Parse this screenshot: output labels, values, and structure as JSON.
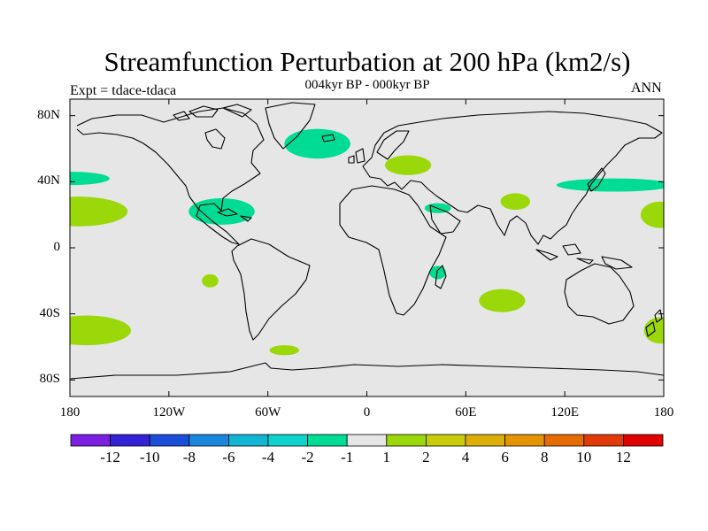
{
  "title": "Streamfunction Perturbation at 200 hPa (km2/s)",
  "subtitle": "004kyr BP - 000kyr BP",
  "experiment": "Expt = tdace-tdaca",
  "season": "ANN",
  "map": {
    "projection": "cylindrical equidistant",
    "lon_range": [
      -180,
      180
    ],
    "lat_range": [
      -90,
      90
    ],
    "ocean_color": "#e6e6e6",
    "coastline_color": "#000000",
    "lat_ticks": [
      {
        "lat": 80,
        "label": "80N"
      },
      {
        "lat": 40,
        "label": "40N"
      },
      {
        "lat": 0,
        "label": "0"
      },
      {
        "lat": -40,
        "label": "40S"
      },
      {
        "lat": -80,
        "label": "80S"
      }
    ],
    "lon_ticks": [
      {
        "lon": -180,
        "label": "180"
      },
      {
        "lon": -120,
        "label": "120W"
      },
      {
        "lon": -60,
        "label": "60W"
      },
      {
        "lon": 0,
        "label": "0"
      },
      {
        "lon": 60,
        "label": "60E"
      },
      {
        "lon": 120,
        "label": "120E"
      },
      {
        "lon": 180,
        "label": "180"
      }
    ],
    "anomaly_patches": [
      {
        "region": "North Pacific (dateline)",
        "lon": -178,
        "lat": 42,
        "rlon": 22,
        "rlat": 4,
        "sign": "negative",
        "level": "-2 to -1"
      },
      {
        "region": "Central North Pacific",
        "lon": -175,
        "lat": 22,
        "rlon": 30,
        "rlat": 9,
        "sign": "positive",
        "level": "1 to 2"
      },
      {
        "region": "Central America",
        "lon": -88,
        "lat": 22,
        "rlon": 20,
        "rlat": 8,
        "sign": "negative",
        "level": "-2 to -1"
      },
      {
        "region": "South Pacific",
        "lon": -95,
        "lat": -20,
        "rlon": 5,
        "rlat": 4,
        "sign": "positive",
        "level": "1 to 2"
      },
      {
        "region": "Southern Pacific 45S",
        "lon": -170,
        "lat": -50,
        "rlon": 27,
        "rlat": 9,
        "sign": "positive",
        "level": "1 to 2"
      },
      {
        "region": "Drake Passage",
        "lon": -50,
        "lat": -62,
        "rlon": 9,
        "rlat": 3,
        "sign": "positive",
        "level": "1 to 2"
      },
      {
        "region": "North Atlantic / Greenland",
        "lon": -30,
        "lat": 63,
        "rlon": 20,
        "rlat": 9,
        "sign": "negative",
        "level": "-2 to -1"
      },
      {
        "region": "Eastern Europe",
        "lon": 25,
        "lat": 50,
        "rlon": 14,
        "rlat": 6,
        "sign": "positive",
        "level": "1 to 2"
      },
      {
        "region": "Red Sea",
        "lon": 43,
        "lat": 24,
        "rlon": 8,
        "rlat": 3,
        "sign": "negative",
        "level": "-2 to -1"
      },
      {
        "region": "Mozambique Channel",
        "lon": 43,
        "lat": -15,
        "rlon": 5,
        "rlat": 4,
        "sign": "negative",
        "level": "-2 to -1"
      },
      {
        "region": "Central Asia",
        "lon": 90,
        "lat": 28,
        "rlon": 9,
        "rlat": 5,
        "sign": "positive",
        "level": "1 to 2"
      },
      {
        "region": "Southern Indian Ocean",
        "lon": 82,
        "lat": -32,
        "rlon": 14,
        "rlat": 7,
        "sign": "positive",
        "level": "1 to 2"
      },
      {
        "region": "Japan / NW Pacific jet",
        "lon": 150,
        "lat": 38,
        "rlon": 35,
        "rlat": 4,
        "sign": "negative",
        "level": "-2 to -1"
      },
      {
        "region": "North Pacific 20N",
        "lon": 178,
        "lat": 20,
        "rlon": 12,
        "rlat": 8,
        "sign": "positive",
        "level": "1 to 2"
      },
      {
        "region": "South Pacific dateline",
        "lon": 178,
        "lat": -50,
        "rlon": 10,
        "rlat": 8,
        "sign": "positive",
        "level": "1 to 2"
      }
    ]
  },
  "colorbar": {
    "colors": [
      "#7b1fe0",
      "#3322d6",
      "#1a4dd8",
      "#1a86dc",
      "#12b5d4",
      "#10d2cc",
      "#00dc94",
      "#e6e6e6",
      "#9ad80a",
      "#c8cc0a",
      "#dcae08",
      "#e49402",
      "#e46c02",
      "#e03a08",
      "#e00000"
    ],
    "labels": [
      "-12",
      "-10",
      "-8",
      "-6",
      "-4",
      "-2",
      "-1",
      "1",
      "2",
      "4",
      "6",
      "8",
      "10",
      "12"
    ]
  }
}
